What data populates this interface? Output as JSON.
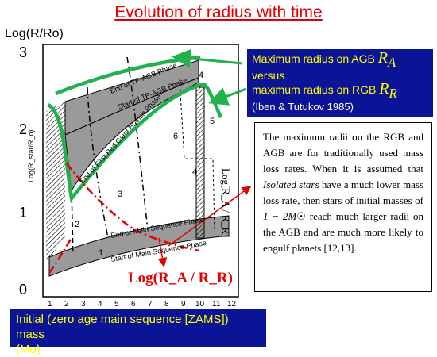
{
  "title": "Evolution of radius with time",
  "y_axis": {
    "label": "Log(R/Ro)",
    "inner_label": "Log(R_star/R_o)",
    "ticks": [
      "3",
      "2",
      "1",
      "0"
    ]
  },
  "x_axis": {
    "ticks": [
      "1",
      "2",
      "3",
      "4",
      "5",
      "6",
      "7",
      "8",
      "9",
      "10",
      "11",
      "12"
    ]
  },
  "phase_labels": {
    "end_tp_agb": "End of TP-AGB Phase",
    "start_tp_agb": "Start of TP-AGB Phase",
    "end_first_rgb": "End of First Red Giant Branch Phase",
    "end_ms": "End of Main Sequence Phase",
    "start_ms": "Start of Main Sequence Phase"
  },
  "region_numbers": [
    "1",
    "2",
    "3",
    "4",
    "4",
    "5",
    "6"
  ],
  "callout": {
    "line1": "Maximum radius on AGB",
    "sym_a": "R",
    "sub_a": "A",
    "line2": "versus",
    "line3": "maximum radius on RGB",
    "sym_r": "R",
    "sub_r": "R",
    "ref": "(Iben & Tutukov 1985)"
  },
  "right_vertical_label": "Log[R_A / R_R]",
  "ratio_label": "Log(R_A / R_R)",
  "text_box": {
    "part1": "The maximum radii on the RGB and AGB are for traditionally used mass loss rates. When it is assumed that ",
    "emph": "Isolated stars",
    "part2": " have a much lower mass loss rate, then stars of initial masses of ",
    "mass": "1 − 2M",
    "part3": " reach much larger radii on the AGB and are much more likely to engulf planets [12,13]."
  },
  "xlabel": {
    "line1": "Initial (zero age main sequence [ZAMS]) mass",
    "line2": "(Mo)"
  },
  "colors": {
    "title": "#e00000",
    "green_curve": "#22b14c",
    "red_curve": "#e00000",
    "box_bg": "#0b1396",
    "box_text": "#ffff00",
    "shade": "#9a9a9a"
  }
}
